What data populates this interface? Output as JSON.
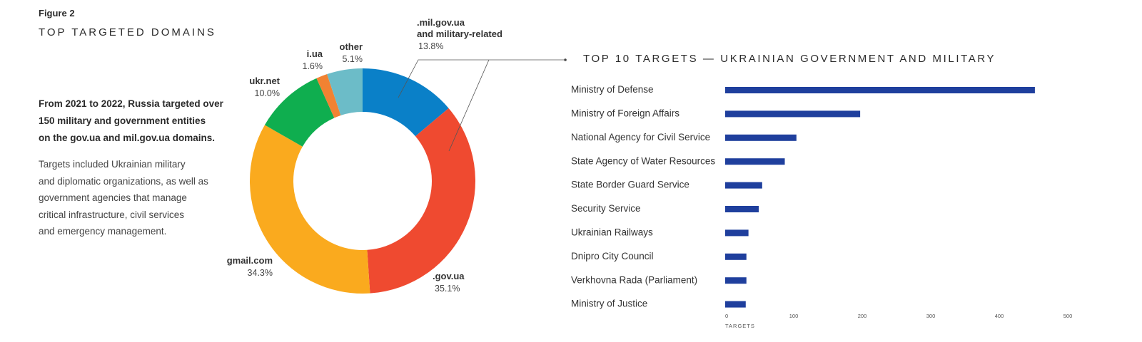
{
  "figure_label": "Figure 2",
  "figure_title": "TOP TARGETED DOMAINS",
  "intro": {
    "bold_lines": [
      "From 2021 to 2022, Russia targeted over",
      "150 military and government entities",
      "on the gov.ua and mil.gov.ua domains."
    ],
    "body_lines": [
      "Targets included Ukrainian military",
      "and diplomatic organizations, as well as",
      "government agencies that manage",
      "critical infrastructure, civil services",
      "and emergency management."
    ]
  },
  "chart_data": [
    {
      "type": "pie",
      "title": "TOP TARGETED DOMAINS",
      "donut": true,
      "slices": [
        {
          "name": ".mil.gov.ua and military-related",
          "name_lines": [
            ".mil.gov.ua",
            "and military-related"
          ],
          "value": 13.8,
          "label": "13.8%",
          "color": "#0a80c8"
        },
        {
          "name": ".gov.ua",
          "name_lines": [
            ".gov.ua"
          ],
          "value": 35.1,
          "label": "35.1%",
          "color": "#ef4a30"
        },
        {
          "name": "gmail.com",
          "name_lines": [
            "gmail.com"
          ],
          "value": 34.3,
          "label": "34.3%",
          "color": "#faaa1e"
        },
        {
          "name": "ukr.net",
          "name_lines": [
            "ukr.net"
          ],
          "value": 10.0,
          "label": "10.0%",
          "color": "#0fae4f"
        },
        {
          "name": "i.ua",
          "name_lines": [
            "i.ua"
          ],
          "value": 1.6,
          "label": "1.6%",
          "color": "#f18232"
        },
        {
          "name": "other",
          "name_lines": [
            "other"
          ],
          "value": 5.1,
          "label": "5.1%",
          "color": "#6cbcc8"
        }
      ]
    },
    {
      "type": "bar",
      "orientation": "horizontal",
      "title": "TOP 10 TARGETS — UKRAINIAN GOVERNMENT AND MILITARY",
      "categories": [
        "Ministry of Defense",
        "Ministry of Foreign Affairs",
        "National Agency for Civil Service",
        "State Agency of Water Resources",
        "State Border Guard Service",
        "Security Service",
        "Ukrainian Railways",
        "Dnipro City Council",
        "Verkhovna Rada (Parliament)",
        "Ministry of Justice"
      ],
      "values": [
        452,
        197,
        104,
        87,
        54,
        49,
        34,
        31,
        31,
        30
      ],
      "xlabel": "TARGETS",
      "xlim": [
        0,
        500
      ],
      "xticks": [
        0,
        100,
        200,
        300,
        400,
        500
      ],
      "bar_color": "#1f3f9d",
      "grid": false
    }
  ]
}
